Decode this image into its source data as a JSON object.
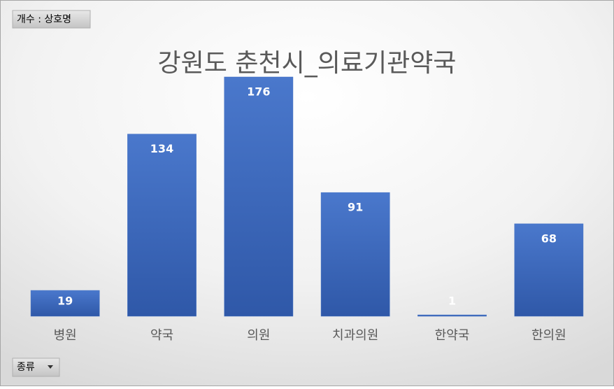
{
  "chart_data": {
    "type": "bar",
    "title": "강원도 춘천시_의료기관약국",
    "value_field": "개수 : 상호명",
    "category_field": "종류",
    "categories": [
      "병원",
      "약국",
      "의원",
      "치과의원",
      "한약국",
      "한의원"
    ],
    "values": [
      19,
      134,
      176,
      91,
      1,
      68
    ],
    "color": "#4472c4",
    "data_labels": true
  }
}
